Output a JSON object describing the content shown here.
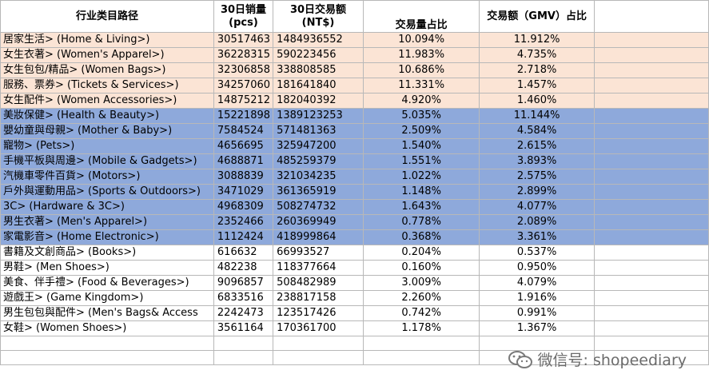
{
  "headers": {
    "path": "行业类目路径",
    "sales_qty": "30日销量\n(pcs)",
    "gmv": "30日交易额\n(NT$)",
    "qty_share": "交易量占比",
    "gmv_share": "交易额（GMV）占比"
  },
  "rows": [
    {
      "group": "peach",
      "path": "居家生活> (Home & Living>)",
      "qty": "30517463",
      "gmv": "1484936552",
      "qty_share": "10.094%",
      "gmv_share": "11.912%"
    },
    {
      "group": "peach",
      "path": "女生衣著> (Women's Apparel>)",
      "qty": "36228315",
      "gmv": "590223456",
      "qty_share": "11.983%",
      "gmv_share": "4.735%"
    },
    {
      "group": "peach",
      "path": "女生包包/精品> (Women Bags>)",
      "qty": "32306858",
      "gmv": "338808585",
      "qty_share": "10.686%",
      "gmv_share": "2.718%"
    },
    {
      "group": "peach",
      "path": "服務、票券> (Tickets & Services>)",
      "qty": "34257060",
      "gmv": "181641840",
      "qty_share": "11.331%",
      "gmv_share": "1.457%"
    },
    {
      "group": "peach",
      "path": "女生配件> (Women Accessories>)",
      "qty": "14875212",
      "gmv": "182040392",
      "qty_share": "4.920%",
      "gmv_share": "1.460%"
    },
    {
      "group": "blue",
      "path": "美妝保健> (Health & Beauty>)",
      "qty": "15221898",
      "gmv": "1389123253",
      "qty_share": "5.035%",
      "gmv_share": "11.144%"
    },
    {
      "group": "blue",
      "path": "嬰幼童與母親> (Mother & Baby>)",
      "qty": "7584524",
      "gmv": "571481363",
      "qty_share": "2.509%",
      "gmv_share": "4.584%"
    },
    {
      "group": "blue",
      "path": "寵物> (Pets>)",
      "qty": "4656695",
      "gmv": "325947200",
      "qty_share": "1.540%",
      "gmv_share": "2.615%"
    },
    {
      "group": "blue",
      "path": "手機平板與周邊> (Mobile & Gadgets>)",
      "qty": "4688871",
      "gmv": "485259379",
      "qty_share": "1.551%",
      "gmv_share": "3.893%"
    },
    {
      "group": "blue",
      "path": "汽機車零件百貨> (Motors>)",
      "qty": "3088839",
      "gmv": "321034235",
      "qty_share": "1.022%",
      "gmv_share": "2.575%"
    },
    {
      "group": "blue",
      "path": "戶外與運動用品> (Sports & Outdoors>)",
      "qty": "3471029",
      "gmv": "361365919",
      "qty_share": "1.148%",
      "gmv_share": "2.899%"
    },
    {
      "group": "blue",
      "path": "3C> (Hardware & 3C>)",
      "qty": "4968309",
      "gmv": "508274732",
      "qty_share": "1.643%",
      "gmv_share": "4.077%"
    },
    {
      "group": "blue",
      "path": "男生衣著> (Men's Apparel>)",
      "qty": "2352466",
      "gmv": "260369949",
      "qty_share": "0.778%",
      "gmv_share": "2.089%"
    },
    {
      "group": "blue",
      "path": "家電影音> (Home Electronic>)",
      "qty": "1112424",
      "gmv": "418999864",
      "qty_share": "0.368%",
      "gmv_share": "3.361%"
    },
    {
      "group": "white",
      "path": "書籍及文創商品> (Books>)",
      "qty": "616632",
      "gmv": "66993527",
      "qty_share": "0.204%",
      "gmv_share": "0.537%"
    },
    {
      "group": "white",
      "path": "男鞋> (Men Shoes>)",
      "qty": "482238",
      "gmv": "118377664",
      "qty_share": "0.160%",
      "gmv_share": "0.950%"
    },
    {
      "group": "white",
      "path": "美食、伴手禮> (Food & Beverages>)",
      "qty": "9096857",
      "gmv": "508482989",
      "qty_share": "3.009%",
      "gmv_share": "4.079%"
    },
    {
      "group": "white",
      "path": "遊戲王> (Game Kingdom>)",
      "qty": "6833516",
      "gmv": "238817158",
      "qty_share": "2.260%",
      "gmv_share": "1.916%"
    },
    {
      "group": "white",
      "path": "男生包包與配件> (Men's Bags& Access",
      "qty": "2242473",
      "gmv": "123517426",
      "qty_share": "0.742%",
      "gmv_share": "0.991%"
    },
    {
      "group": "white",
      "path": "女鞋> (Women Shoes>)",
      "qty": "3561164",
      "gmv": "170361700",
      "qty_share": "1.178%",
      "gmv_share": "1.367%"
    }
  ],
  "watermark": {
    "text": "微信号: shopeediary",
    "icon": "wechat-icon"
  },
  "colors": {
    "peach": "#fbe4d5",
    "blue": "#8ea9db"
  }
}
